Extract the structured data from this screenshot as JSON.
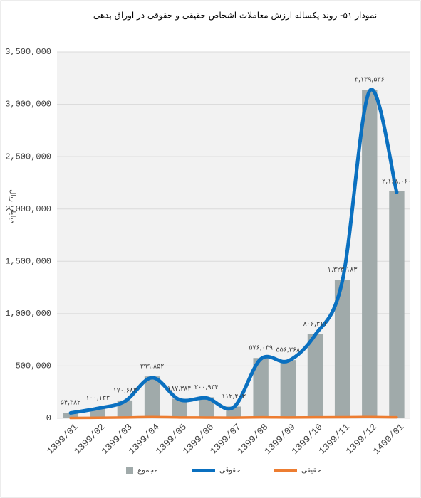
{
  "chart_data": {
    "type": "bar-line",
    "title": "نمودار ۵۱- روند یکساله ارزش معاملات اشخاص حقیقی و حقوقی در اوراق بدهی",
    "y_label": "میلیارد ریال",
    "categories": [
      "1399/01",
      "1399/02",
      "1399/03",
      "1399/04",
      "1399/05",
      "1399/06",
      "1399/07",
      "1399/08",
      "1399/09",
      "1399/10",
      "1399/11",
      "1399/12",
      "1400/01"
    ],
    "series": [
      {
        "name": "مجموع",
        "type": "bar",
        "color": "#a0aaaa",
        "values": [
          54382,
          100133,
          170683,
          399852,
          187384,
          200934,
          112403,
          576039,
          556368,
          806311,
          1323183,
          3139536,
          2168060
        ],
        "value_labels": [
          "۵۴,۳۸۲",
          "۱۰۰,۱۳۳",
          "۱۷۰,۶۸۳",
          "۳۹۹,۸۵۲",
          "۱۸۷,۳۸۴",
          "۲۰۰,۹۳۴",
          "۱۱۲,۴۰۳",
          "۵۷۶,۰۳۹",
          "۵۵۶,۳۶۸",
          "۸۰۶,۳۱۱",
          "۱,۳۲۳,۱۸۳",
          "۳,۱۳۹,۵۳۶",
          "۲,۱۶۸,۰۶۰"
        ]
      },
      {
        "name": "حقوقی",
        "type": "line",
        "color": "#0a70c0",
        "values": [
          51000,
          95000,
          163000,
          388000,
          179000,
          194000,
          106000,
          567000,
          548000,
          797000,
          1313000,
          3127000,
          2159000
        ]
      },
      {
        "name": "حقیقی",
        "type": "line",
        "color": "#ed7d31",
        "values": [
          3000,
          5000,
          8000,
          12000,
          8000,
          7000,
          6000,
          9000,
          8000,
          9000,
          10000,
          12000,
          9000
        ]
      }
    ],
    "ylim": [
      0,
      3500000
    ],
    "yticks": [
      0,
      {
        "value": 500000,
        "label": "500,000"
      },
      {
        "value": 1000000,
        "label": "1,000,000"
      },
      {
        "value": 1500000,
        "label": "1,500,000"
      },
      {
        "value": 2000000,
        "label": "2,000,000"
      },
      {
        "value": 2500000,
        "label": "2,500,000"
      },
      {
        "value": 3000000,
        "label": "3,000,000"
      },
      {
        "value": 3500000,
        "label": "3,500,000"
      }
    ],
    "grid": true
  }
}
